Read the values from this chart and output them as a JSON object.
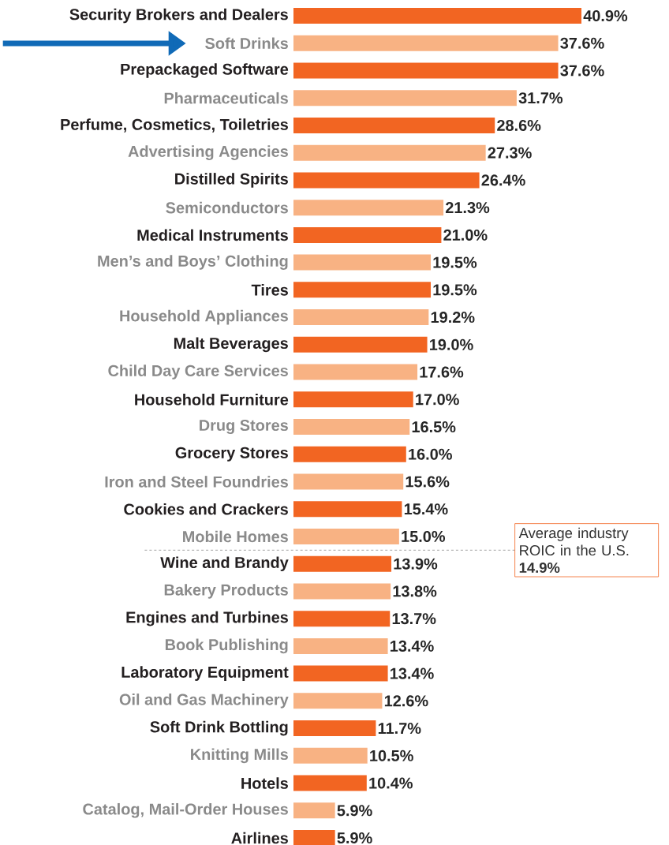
{
  "chart_data": {
    "type": "bar",
    "orientation": "horizontal",
    "categories": [
      "Security Brokers and Dealers",
      "Soft Drinks",
      "Prepackaged Software",
      "Pharmaceuticals",
      "Perfume, Cosmetics, Toiletries",
      "Advertising Agencies",
      "Distilled Spirits",
      "Semiconductors",
      "Medical Instruments",
      "Men’s and Boys’ Clothing",
      "Tires",
      "Household Appliances",
      "Malt Beverages",
      "Child Day Care Services",
      "Household Furniture",
      "Drug Stores",
      "Grocery Stores",
      "Iron and Steel Foundries",
      "Cookies and Crackers",
      "Mobile Homes",
      "Wine and Brandy",
      "Bakery Products",
      "Engines and Turbines",
      "Book Publishing",
      "Laboratory Equipment",
      "Oil and Gas Machinery",
      "Soft Drink Bottling",
      "Knitting Mills",
      "Hotels",
      "Catalog, Mail-Order Houses",
      "Airlines"
    ],
    "values": [
      40.9,
      37.6,
      37.6,
      31.7,
      28.6,
      27.3,
      26.4,
      21.3,
      21.0,
      19.5,
      19.5,
      19.2,
      19.0,
      17.6,
      17.0,
      16.5,
      16.0,
      15.6,
      15.4,
      15.0,
      13.9,
      13.8,
      13.7,
      13.4,
      13.4,
      12.6,
      11.7,
      10.5,
      10.4,
      5.9,
      5.9
    ],
    "value_labels": [
      "40.9%",
      "37.6%",
      "37.6%",
      "31.7%",
      "28.6%",
      "27.3%",
      "26.4%",
      "21.3%",
      "21.0%",
      "19.5%",
      "19.5%",
      "19.2%",
      "19.0%",
      "17.6%",
      "17.0%",
      "16.5%",
      "16.0%",
      "15.6%",
      "15.4%",
      "15.0%",
      "13.9%",
      "13.8%",
      "13.7%",
      "13.4%",
      "13.4%",
      "12.6%",
      "11.7%",
      "10.5%",
      "10.4%",
      "5.9%",
      "5.9%"
    ],
    "colors": [
      "#f26522",
      "#f8b283",
      "#f26522",
      "#f8b283",
      "#f26522",
      "#f8b283",
      "#f26522",
      "#f8b283",
      "#f26522",
      "#f8b283",
      "#f26522",
      "#f8b283",
      "#f26522",
      "#f8b283",
      "#f26522",
      "#f8b283",
      "#f26522",
      "#f8b283",
      "#f26522",
      "#f8b283",
      "#f26522",
      "#f8b283",
      "#f26522",
      "#f8b283",
      "#f26522",
      "#f8b283",
      "#f26522",
      "#f8b283",
      "#f26522",
      "#f8b283",
      "#f26522"
    ],
    "annotations": [
      "Average industry ROIC in the U.S.",
      "14.9%"
    ]
  }
}
